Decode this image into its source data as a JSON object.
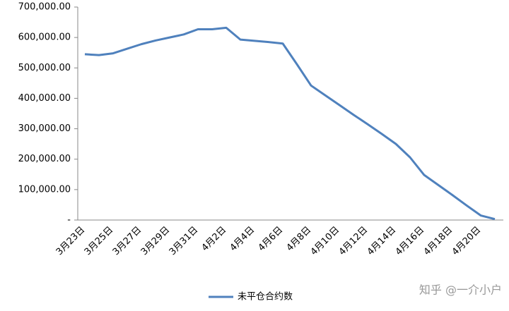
{
  "chart_data": {
    "type": "line",
    "categories": [
      "3月23日",
      null,
      "3月25日",
      null,
      "3月27日",
      null,
      "3月29日",
      null,
      "3月31日",
      null,
      "4月2日",
      null,
      "4月4日",
      null,
      "4月6日",
      null,
      "4月8日",
      null,
      "4月10日",
      null,
      "4月12日",
      null,
      "4月14日",
      null,
      "4月16日",
      null,
      "4月18日",
      null,
      "4月20日",
      null
    ],
    "series": [
      {
        "name": "未平仓合约数",
        "color": "#4f81bd",
        "values": [
          545000,
          542000,
          548000,
          563000,
          578000,
          590000,
          600000,
          610000,
          627000,
          627000,
          632000,
          593000,
          589000,
          585000,
          580000,
          512000,
          442000,
          410000,
          378000,
          346000,
          315000,
          283000,
          250000,
          206000,
          148000,
          115000,
          82000,
          48000,
          15000,
          3000
        ]
      }
    ],
    "ylim": [
      0,
      700000
    ],
    "yticks": [
      {
        "value": 0,
        "label": "-"
      },
      {
        "value": 100000,
        "label": "100,000.00"
      },
      {
        "value": 200000,
        "label": "200,000.00"
      },
      {
        "value": 300000,
        "label": "300,000.00"
      },
      {
        "value": 400000,
        "label": "400,000.00"
      },
      {
        "value": 500000,
        "label": "500,000.00"
      },
      {
        "value": 600000,
        "label": "600,000.00"
      },
      {
        "value": 700000,
        "label": "700,000.00"
      }
    ],
    "legend": "bottom",
    "watermark": "知乎 @一介小户"
  }
}
